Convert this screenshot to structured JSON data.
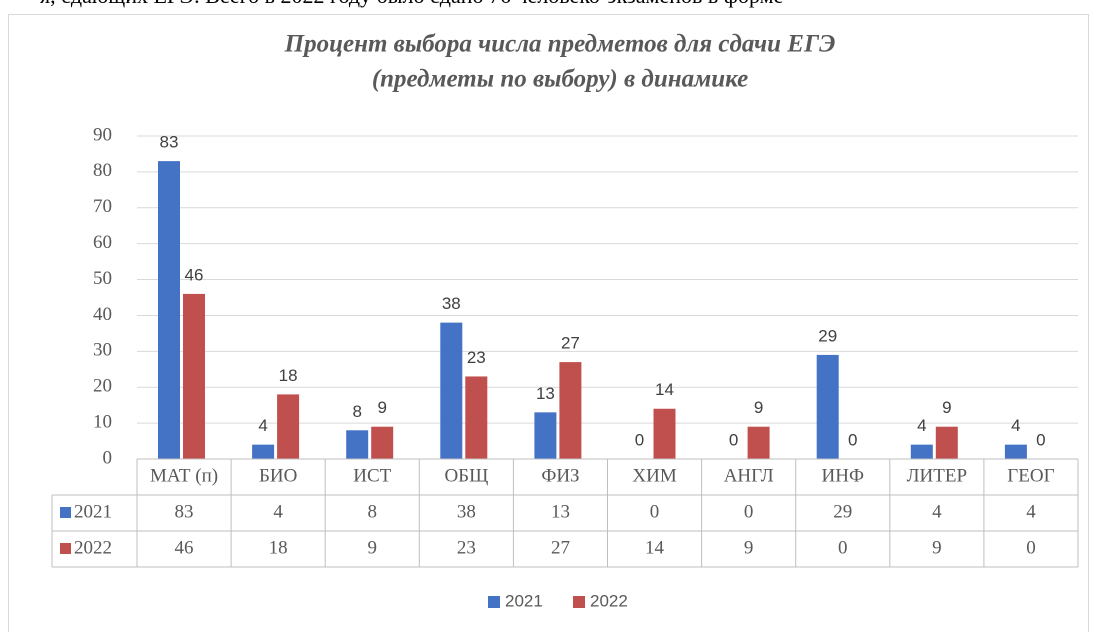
{
  "page_text": "я, сдающих ЕГЭ. Всего в 2022 году было сдано 76 человеко-экзаменов в форме",
  "chart_data": {
    "type": "bar",
    "title": [
      "Процент выбора числа предметов для сдачи ЕГЭ",
      "(предметы по выбору) в динамике"
    ],
    "categories": [
      "МАТ (п)",
      "БИО",
      "ИСТ",
      "ОБЩ",
      "ФИЗ",
      "ХИМ",
      "АНГЛ",
      "ИНФ",
      "ЛИТЕР",
      "ГЕОГ"
    ],
    "series": [
      {
        "name": "2021",
        "color": "#4472c4",
        "values": [
          83,
          4,
          8,
          38,
          13,
          0,
          0,
          29,
          4,
          4
        ]
      },
      {
        "name": "2022",
        "color": "#c0504d",
        "values": [
          46,
          18,
          9,
          23,
          27,
          14,
          9,
          0,
          9,
          0
        ]
      }
    ],
    "ylim": [
      0,
      90
    ],
    "yticks": [
      0,
      10,
      20,
      30,
      40,
      50,
      60,
      70,
      80,
      90
    ],
    "grid": true,
    "legend": "bottom",
    "data_table": true
  }
}
